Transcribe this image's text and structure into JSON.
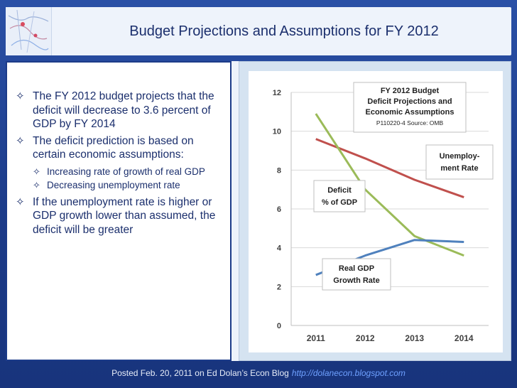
{
  "slide": {
    "title": "Budget Projections and Assumptions for FY 2012",
    "bullets": [
      {
        "text": "The FY 2012 budget projects that the deficit will decrease to 3.6 percent of GDP by FY 2014"
      },
      {
        "text": "The deficit prediction is based on certain economic assumptions:",
        "subitems": [
          "Increasing rate of growth of real GDP",
          "Decreasing unemployment rate"
        ]
      },
      {
        "text": "If the unemployment rate is higher or GDP growth lower than assumed, the deficit will be greater"
      }
    ],
    "bullet_symbol": "✧",
    "footer": {
      "text": "Posted Feb. 20, 2011 on Ed Dolan’s Econ Blog",
      "url": "http://dolanecon.blogspot.com"
    },
    "colors": {
      "background": "#1f3f8e",
      "title_text": "#1b2f6d",
      "footer_url": "#6ea0ff"
    }
  },
  "chart_data": {
    "type": "line",
    "title": "FY 2012 Budget Deficit Projections and Economic Assumptions",
    "subtitle": "P110220-4 Source: OMB",
    "categories": [
      "2011",
      "2012",
      "2013",
      "2014"
    ],
    "ylim": [
      0,
      12
    ],
    "yticks": [
      "0",
      "2",
      "4",
      "6",
      "8",
      "10",
      "12"
    ],
    "series": [
      {
        "name": "Unemploy-ment Rate",
        "values": [
          9.6,
          8.6,
          7.5,
          6.6
        ],
        "color": "#c0504d"
      },
      {
        "name": "Deficit % of GDP",
        "values": [
          10.9,
          7.0,
          4.6,
          3.6
        ],
        "color": "#9bbb59"
      },
      {
        "name": "Real GDP Growth Rate",
        "values": [
          2.6,
          3.6,
          4.4,
          4.3
        ],
        "color": "#4f81bd"
      }
    ],
    "label_positions": [
      "right-upper",
      "center-left",
      "lower-middle"
    ]
  }
}
